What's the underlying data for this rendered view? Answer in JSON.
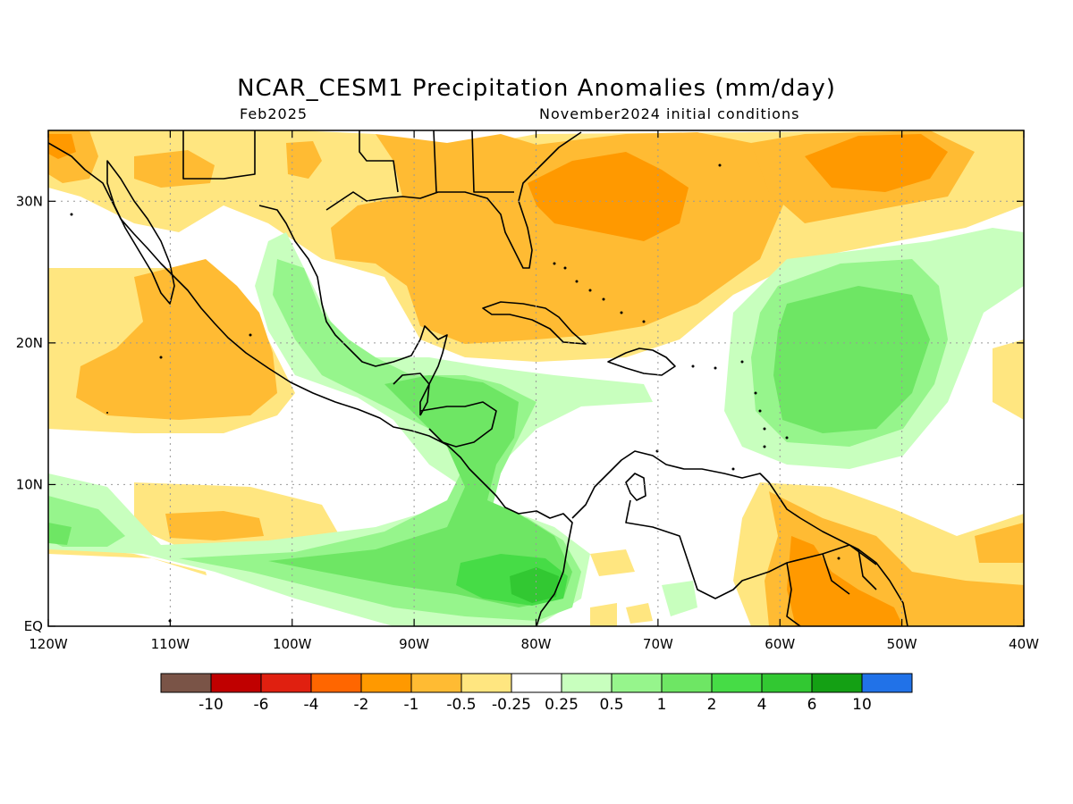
{
  "header": {
    "title": "NCAR_CESM1 Precipitation Anomalies (mm/day)",
    "month": "Feb2025",
    "init": "November2024 initial conditions"
  },
  "map": {
    "lon_range": [
      -120,
      -40
    ],
    "lat_range": [
      0,
      35
    ],
    "lon_ticks": [
      {
        "value": -120,
        "label": "120W"
      },
      {
        "value": -110,
        "label": "110W"
      },
      {
        "value": -100,
        "label": "100W"
      },
      {
        "value": -90,
        "label": "90W"
      },
      {
        "value": -80,
        "label": "80W"
      },
      {
        "value": -70,
        "label": "70W"
      },
      {
        "value": -60,
        "label": "60W"
      },
      {
        "value": -50,
        "label": "50W"
      },
      {
        "value": -40,
        "label": "40W"
      }
    ],
    "lat_ticks": [
      {
        "value": 0,
        "label": "EQ"
      },
      {
        "value": 10,
        "label": "10N"
      },
      {
        "value": 20,
        "label": "20N"
      },
      {
        "value": 30,
        "label": "30N"
      }
    ],
    "grid": "dotted"
  },
  "colorbar": {
    "colors": [
      "#7a5447",
      "#c00000",
      "#e02010",
      "#ff6600",
      "#ff9900",
      "#ffbb33",
      "#ffe680",
      "#ffffff",
      "#c8ffbe",
      "#96f58c",
      "#6ee664",
      "#46dc46",
      "#32c832",
      "#14a014",
      "#2172e8"
    ],
    "labels": [
      "-10",
      "-6",
      "-4",
      "-2",
      "-1",
      "-0.5",
      "-0.25",
      "0.25",
      "0.5",
      "1",
      "2",
      "4",
      "6",
      "10"
    ]
  }
}
